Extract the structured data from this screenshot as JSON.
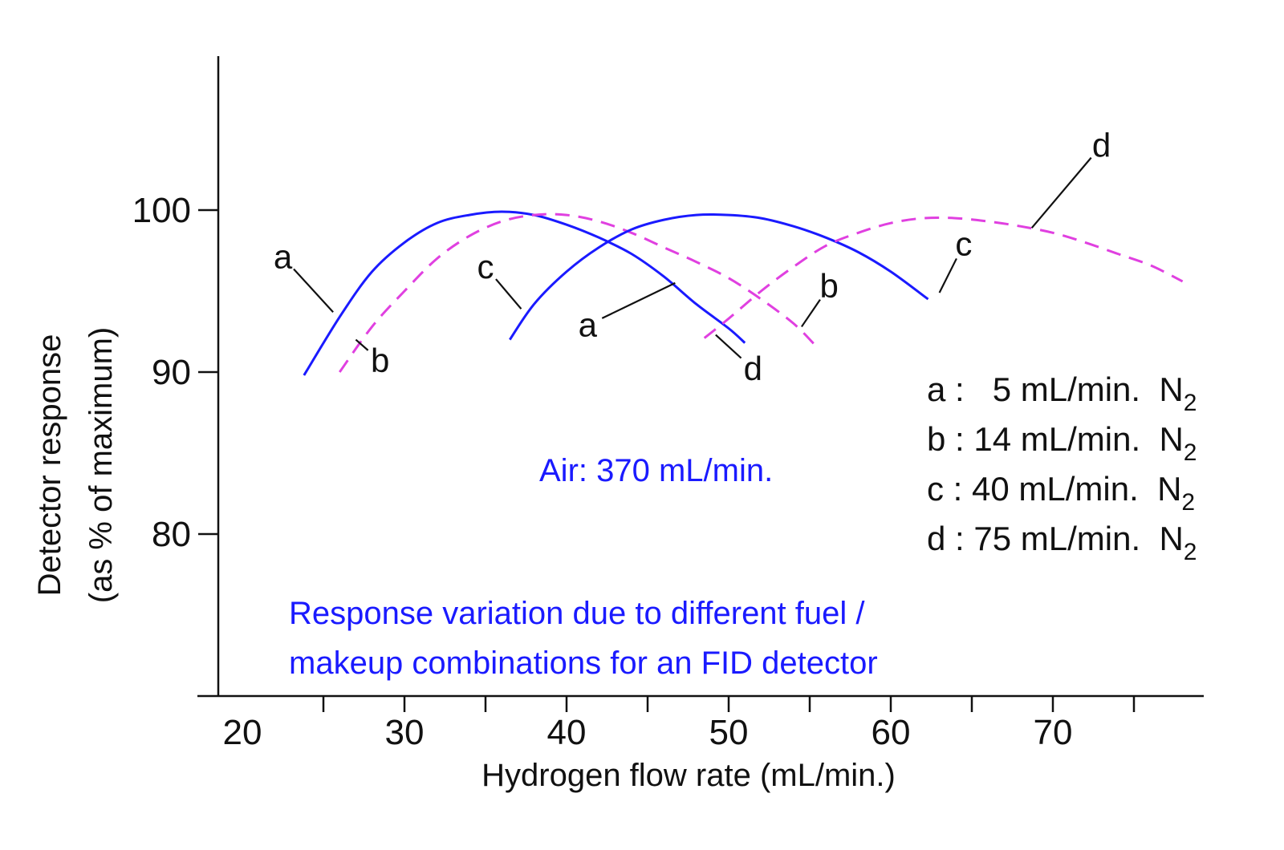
{
  "chart_data": {
    "type": "line",
    "xlabel": "Hydrogen flow rate (mL/min.)",
    "ylabel_line1": "Detector response",
    "ylabel_line2": "(as % of maximum)",
    "x_ticks": [
      20,
      30,
      40,
      50,
      60,
      70
    ],
    "y_ticks": [
      80,
      90,
      100
    ],
    "xlim": [
      18.5,
      77.5
    ],
    "ylim": [
      70,
      110
    ],
    "series": [
      {
        "name": "a",
        "style": "solid",
        "color": "#1a1aff",
        "x": [
          23.8,
          26,
          28,
          30,
          32,
          34,
          36,
          38,
          40,
          42,
          44,
          46,
          48,
          50,
          51
        ],
        "y": [
          89.8,
          93.4,
          96.2,
          98.0,
          99.2,
          99.7,
          99.9,
          99.7,
          99.1,
          98.3,
          97.3,
          95.9,
          94.2,
          92.7,
          91.8
        ]
      },
      {
        "name": "b",
        "style": "dashed",
        "color": "#e040e0",
        "x": [
          26,
          28,
          30,
          32,
          34,
          36,
          38,
          40,
          42,
          44,
          46,
          48,
          50,
          52,
          54,
          55.3
        ],
        "y": [
          90.0,
          92.8,
          95.0,
          97.0,
          98.4,
          99.3,
          99.7,
          99.7,
          99.3,
          98.6,
          97.7,
          96.8,
          95.8,
          94.5,
          93.0,
          91.7
        ]
      },
      {
        "name": "c",
        "style": "solid",
        "color": "#1a1aff",
        "x": [
          36.5,
          38,
          40,
          42,
          44,
          46,
          48,
          50,
          52,
          54,
          56,
          58,
          60,
          62.3
        ],
        "y": [
          92.0,
          94.2,
          96.2,
          97.7,
          98.8,
          99.4,
          99.7,
          99.7,
          99.5,
          99.0,
          98.3,
          97.4,
          96.2,
          94.5
        ]
      },
      {
        "name": "d",
        "style": "dashed",
        "color": "#e040e0",
        "x": [
          48.5,
          50,
          52,
          54,
          56,
          58,
          60,
          62,
          64,
          66,
          68,
          70,
          72,
          74,
          76,
          78
        ],
        "y": [
          92.1,
          93.3,
          95.0,
          96.5,
          97.8,
          98.6,
          99.2,
          99.5,
          99.5,
          99.3,
          99.0,
          98.6,
          98.0,
          97.3,
          96.6,
          95.6
        ]
      }
    ],
    "curve_labels": [
      {
        "text": "a",
        "label_x": 22.5,
        "label_y": 96.4,
        "point_x": 25.6,
        "point_y": 93.7
      },
      {
        "text": "b",
        "label_x": 28.5,
        "label_y": 90.0,
        "point_x": 27.0,
        "point_y": 92.0
      },
      {
        "text": "c",
        "label_x": 35.0,
        "label_y": 95.8,
        "point_x": 37.2,
        "point_y": 93.9
      },
      {
        "text": "a",
        "label_x": 41.3,
        "label_y": 92.2,
        "point_x": 46.7,
        "point_y": 95.5
      },
      {
        "text": "d",
        "label_x": 51.5,
        "label_y": 89.5,
        "point_x": 49.2,
        "point_y": 92.3
      },
      {
        "text": "b",
        "label_x": 56.2,
        "label_y": 94.6,
        "point_x": 54.5,
        "point_y": 92.8
      },
      {
        "text": "c",
        "label_x": 64.5,
        "label_y": 97.2,
        "point_x": 63.0,
        "point_y": 94.9
      },
      {
        "text": "d",
        "label_x": 73.0,
        "label_y": 103.3,
        "point_x": 68.7,
        "point_y": 98.9
      }
    ]
  },
  "legend": [
    {
      "label": "a :   5 mL/min.  N",
      "sub": "2"
    },
    {
      "label": "b : 14 mL/min.  N",
      "sub": "2"
    },
    {
      "label": "c : 40 mL/min.  N",
      "sub": "2"
    },
    {
      "label": "d : 75 mL/min.  N",
      "sub": "2"
    }
  ],
  "air_note": "Air: 370 mL/min.",
  "caption": {
    "line1": "Response variation due to different fuel /",
    "line2": "makeup combinations for an FID detector"
  }
}
